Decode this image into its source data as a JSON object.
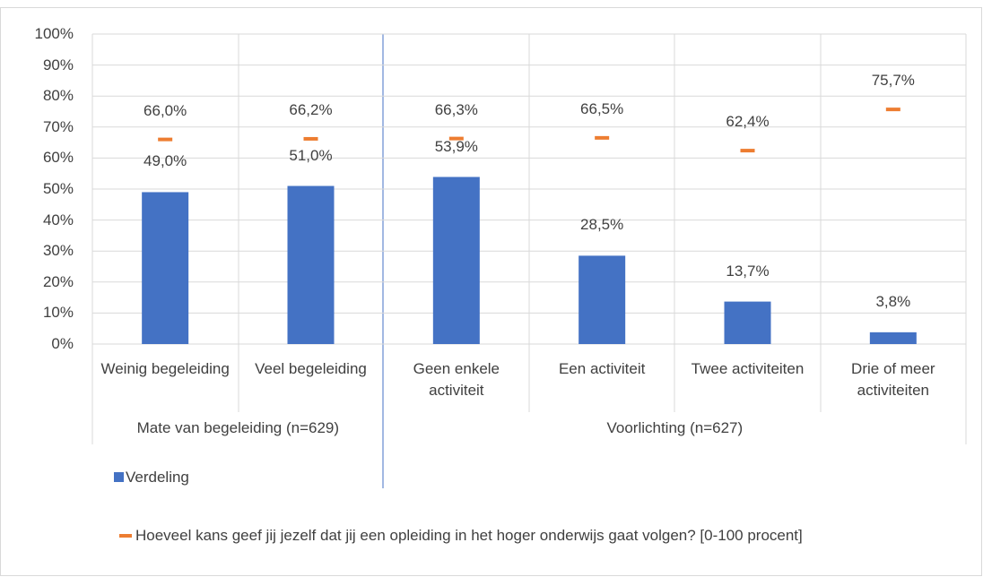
{
  "chart_data": {
    "type": "bar",
    "groups": [
      {
        "name": "Mate van begeleiding (n=629)",
        "categories": [
          "Weinig begeleiding",
          "Veel begeleiding"
        ]
      },
      {
        "name": "Voorlichting (n=627)",
        "categories": [
          "Geen enkele activiteit",
          "Een activiteit",
          "Twee activiteiten",
          "Drie of meer activiteiten"
        ]
      }
    ],
    "series": [
      {
        "name": "Verdeling",
        "type": "bar",
        "color": "#4472c4",
        "values": [
          49.0,
          51.0,
          53.9,
          28.5,
          13.7,
          3.8
        ],
        "value_labels": [
          "49,0%",
          "51,0%",
          "53,9%",
          "28,5%",
          "13,7%",
          "3,8%"
        ]
      },
      {
        "name": "Hoeveel kans geef jij jezelf dat jij een opleiding in het hoger onderwijs gaat volgen? [0-100 procent]",
        "type": "marker",
        "color": "#ed7d31",
        "values": [
          66.0,
          66.2,
          66.3,
          66.5,
          62.4,
          75.7
        ],
        "value_labels": [
          "66,0%",
          "66,2%",
          "66,3%",
          "66,5%",
          "62,4%",
          "75,7%"
        ]
      }
    ],
    "ylim": [
      0,
      100
    ],
    "yticks": [
      {
        "value": 0,
        "label": "0%"
      },
      {
        "value": 10,
        "label": "10%"
      },
      {
        "value": 20,
        "label": "20%"
      },
      {
        "value": 30,
        "label": "30%"
      },
      {
        "value": 40,
        "label": "40%"
      },
      {
        "value": 50,
        "label": "50%"
      },
      {
        "value": 60,
        "label": "60%"
      },
      {
        "value": 70,
        "label": "70%"
      },
      {
        "value": 80,
        "label": "80%"
      },
      {
        "value": 90,
        "label": "90%"
      },
      {
        "value": 100,
        "label": "100%"
      }
    ],
    "grid": true,
    "legend": "bottom"
  }
}
